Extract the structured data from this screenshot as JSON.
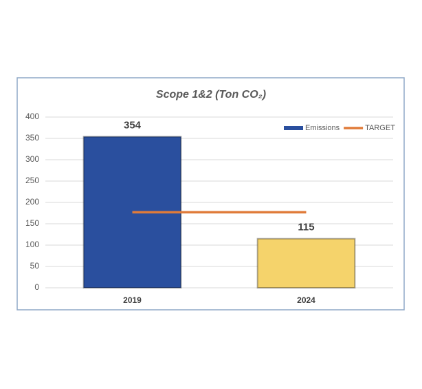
{
  "chart_data": {
    "type": "bar",
    "title": "Scope 1&2 (Ton CO₂)",
    "categories": [
      "2019",
      "2024"
    ],
    "series": [
      {
        "name": "Emissions",
        "color": "#2a4f9e",
        "colors": [
          "#2a4f9e",
          "#f5d36b"
        ],
        "values": [
          354,
          115
        ],
        "kind": "bar"
      },
      {
        "name": "TARGET",
        "color": "#e07b39",
        "values": [
          177,
          177
        ],
        "kind": "line"
      }
    ],
    "ylim": [
      0,
      400
    ],
    "yticks": [
      0,
      50,
      100,
      150,
      200,
      250,
      300,
      350,
      400
    ],
    "grid": true,
    "legend": "top-right"
  }
}
